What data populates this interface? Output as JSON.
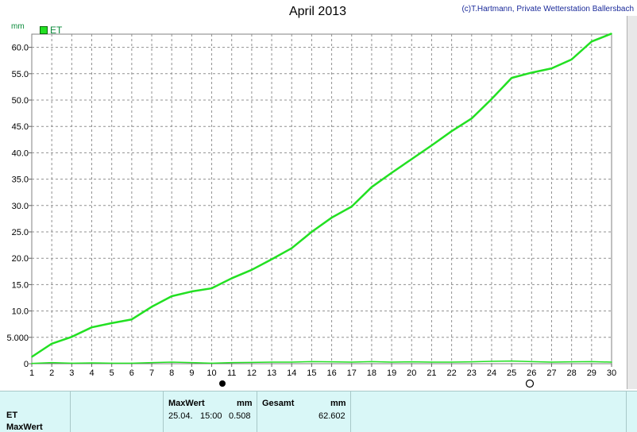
{
  "header": {
    "title": "April 2013",
    "copyright": "(c)T.Hartmann, Private Wetterstation Ballersbach",
    "unit": "mm",
    "legend_label": "ET"
  },
  "colors": {
    "series": "#22e022",
    "footer_bg": "#d9f7f7"
  },
  "chart_data": {
    "type": "line",
    "title": "April 2013",
    "ylabel": "mm",
    "xlim": [
      1,
      30
    ],
    "ylim": [
      0,
      62.5
    ],
    "grid": true,
    "legend": "top-left",
    "x_ticks": [
      "1",
      "2",
      "3",
      "4",
      "5",
      "6",
      "7",
      "8",
      "9",
      "10",
      "11",
      "12",
      "13",
      "14",
      "15",
      "16",
      "17",
      "18",
      "19",
      "20",
      "21",
      "22",
      "23",
      "24",
      "25",
      "26",
      "27",
      "28",
      "29",
      "30"
    ],
    "y_ticks": [
      "0",
      "5.000",
      "10.0",
      "15.0",
      "20.0",
      "25.0",
      "30.0",
      "35.0",
      "40.0",
      "45.0",
      "50.0",
      "55.0",
      "60.0"
    ],
    "series": [
      {
        "name": "ET",
        "x": [
          1,
          2,
          3,
          4,
          5,
          6,
          7,
          8,
          9,
          10,
          11,
          12,
          13,
          14,
          15,
          16,
          17,
          18,
          19,
          20,
          21,
          22,
          23,
          24,
          25,
          26,
          27,
          28,
          29,
          30
        ],
        "values": [
          1.3,
          3.8,
          5.1,
          6.9,
          7.7,
          8.4,
          10.8,
          12.8,
          13.7,
          14.3,
          16.2,
          17.8,
          19.8,
          21.9,
          25.0,
          27.7,
          29.8,
          33.5,
          36.2,
          38.8,
          41.4,
          44.1,
          46.5,
          50.2,
          54.2,
          55.2,
          56.0,
          57.7,
          61.1,
          62.6
        ]
      },
      {
        "name": "",
        "x": [
          1,
          2,
          3,
          4,
          5,
          6,
          7,
          8,
          9,
          10,
          11,
          12,
          13,
          14,
          15,
          16,
          17,
          18,
          19,
          20,
          21,
          22,
          23,
          24,
          25,
          26,
          27,
          28,
          29,
          30
        ],
        "values": [
          0.05,
          0.2,
          0.1,
          0.15,
          0.1,
          0.1,
          0.2,
          0.3,
          0.2,
          0.1,
          0.2,
          0.25,
          0.3,
          0.3,
          0.4,
          0.35,
          0.3,
          0.4,
          0.3,
          0.35,
          0.3,
          0.3,
          0.35,
          0.45,
          0.5,
          0.4,
          0.3,
          0.35,
          0.4,
          0.3
        ]
      }
    ]
  },
  "footer": {
    "row1_label": "ET",
    "row2_label": "MaxWert",
    "max_header": "MaxWert",
    "max_unit": "mm",
    "max_date": "25.04.",
    "max_time": "15:00",
    "max_value": "0.508",
    "total_header": "Gesamt",
    "total_unit": "mm",
    "total_value": "62.602"
  }
}
